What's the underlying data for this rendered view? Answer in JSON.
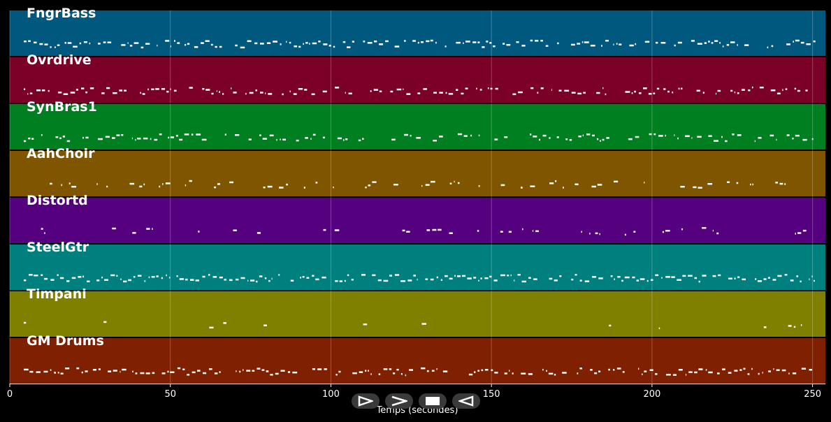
{
  "tracks": [
    {
      "name": "FngrBass",
      "color": "#00587f",
      "density": 0.75
    },
    {
      "name": "Ovrdrive",
      "color": "#7a0028",
      "density": 0.7
    },
    {
      "name": "SynBras1",
      "color": "#007f20",
      "density": 0.55
    },
    {
      "name": "AahChoir",
      "color": "#7f5500",
      "density": 0.45
    },
    {
      "name": "Distortd",
      "color": "#55007f",
      "density": 0.25
    },
    {
      "name": "SteelGtr",
      "color": "#007f7f",
      "density": 0.9
    },
    {
      "name": "Timpani",
      "color": "#7f7f00",
      "density": 0.05
    },
    {
      "name": "GM Drums",
      "color": "#7f2000",
      "density": 0.8
    }
  ],
  "x_axis": {
    "label": "Temps (secondes)",
    "min": 0,
    "max": 254,
    "ticks": [
      0,
      50,
      100,
      150,
      200,
      250
    ]
  },
  "controls": [
    {
      "name": "play-icon",
      "label": "play"
    },
    {
      "name": "fast-forward-icon",
      "label": "fast-forward"
    },
    {
      "name": "stop-icon",
      "label": "stop"
    },
    {
      "name": "rewind-icon",
      "label": "rewind"
    }
  ],
  "colors": {
    "background": "#000000",
    "note": "#ffffff",
    "grid": "#ffffff"
  }
}
